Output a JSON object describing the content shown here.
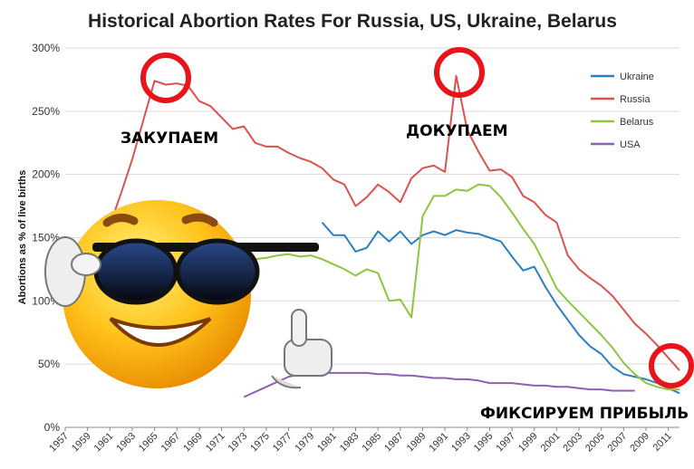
{
  "chart_data": {
    "type": "line",
    "title": "Historical Abortion Rates For Russia, US, Ukraine, Belarus",
    "ylabel": "Abortions as % of live births",
    "xlabel": "",
    "ylim": [
      0,
      300
    ],
    "xlim": [
      1957,
      2012
    ],
    "y_ticks": [
      "0%",
      "50%",
      "100%",
      "150%",
      "200%",
      "250%",
      "300%"
    ],
    "x_ticks": [
      "1957",
      "1959",
      "1961",
      "1963",
      "1965",
      "1967",
      "1969",
      "1971",
      "1973",
      "1975",
      "1977",
      "1979",
      "1981",
      "1983",
      "1985",
      "1987",
      "1989",
      "1991",
      "1993",
      "1995",
      "1997",
      "1999",
      "2001",
      "2003",
      "2005",
      "2007",
      "2009",
      "2011"
    ],
    "grid": "horizontal",
    "legend_position": "top-right",
    "series": [
      {
        "name": "Ukraine",
        "color": "#2e7fc0",
        "x": [
          1980,
          1981,
          1982,
          1983,
          1984,
          1985,
          1986,
          1987,
          1988,
          1989,
          1990,
          1991,
          1992,
          1993,
          1994,
          1995,
          1996,
          1997,
          1998,
          1999,
          2000,
          2001,
          2002,
          2003,
          2004,
          2005,
          2006,
          2007,
          2008,
          2009,
          2010,
          2011,
          2012
        ],
        "values": [
          162,
          152,
          152,
          139,
          142,
          155,
          147,
          155,
          145,
          152,
          155,
          152,
          156,
          154,
          153,
          150,
          147,
          135,
          124,
          127,
          111,
          97,
          85,
          73,
          64,
          58,
          48,
          42,
          40,
          38,
          35,
          31,
          27
        ]
      },
      {
        "name": "Russia",
        "color": "#d9534f",
        "x": [
          1957,
          1958,
          1959,
          1960,
          1961,
          1962,
          1963,
          1964,
          1965,
          1966,
          1967,
          1968,
          1969,
          1970,
          1971,
          1972,
          1973,
          1974,
          1975,
          1976,
          1977,
          1978,
          1979,
          1980,
          1981,
          1982,
          1983,
          1984,
          1985,
          1986,
          1987,
          1988,
          1989,
          1990,
          1991,
          1992,
          1993,
          1994,
          1995,
          1996,
          1997,
          1998,
          1999,
          2000,
          2001,
          2002,
          2003,
          2004,
          2005,
          2006,
          2007,
          2008,
          2009,
          2010,
          2011,
          2012
        ],
        "values": [
          90,
          100,
          118,
          133,
          160,
          185,
          212,
          243,
          274,
          271,
          272,
          270,
          258,
          254,
          245,
          236,
          238,
          225,
          222,
          222,
          217,
          213,
          210,
          205,
          196,
          192,
          175,
          182,
          192,
          186,
          178,
          197,
          205,
          207,
          202,
          278,
          235,
          218,
          203,
          204,
          198,
          183,
          178,
          168,
          162,
          136,
          125,
          118,
          112,
          104,
          93,
          82,
          74,
          65,
          55,
          45
        ]
      },
      {
        "name": "Belarus",
        "color": "#8cc63f",
        "x": [
          1957,
          1958,
          1959,
          1960,
          1961,
          1962,
          1963,
          1964,
          1965,
          1966,
          1967,
          1968,
          1969,
          1970,
          1971,
          1972,
          1973,
          1974,
          1975,
          1976,
          1977,
          1978,
          1979,
          1980,
          1981,
          1982,
          1983,
          1984,
          1985,
          1986,
          1987,
          1988,
          1989,
          1990,
          1991,
          1992,
          1993,
          1994,
          1995,
          1996,
          1997,
          1998,
          1999,
          2000,
          2001,
          2002,
          2003,
          2004,
          2005,
          2006,
          2007,
          2008,
          2009,
          2010,
          2011,
          2012
        ],
        "values": [
          115,
          118,
          120,
          122,
          123,
          125,
          127,
          128,
          129,
          130,
          130,
          131,
          131,
          132,
          132,
          133,
          133,
          133,
          134,
          136,
          137,
          135,
          136,
          133,
          129,
          125,
          120,
          125,
          122,
          100,
          101,
          87,
          167,
          183,
          183,
          188,
          187,
          192,
          191,
          182,
          170,
          157,
          145,
          128,
          110,
          100,
          91,
          82,
          73,
          63,
          51,
          42,
          35,
          32,
          30,
          30
        ]
      },
      {
        "name": "USA",
        "color": "#8e5fb5",
        "x": [
          1973,
          1974,
          1975,
          1976,
          1977,
          1978,
          1979,
          1980,
          1981,
          1982,
          1983,
          1984,
          1985,
          1986,
          1987,
          1988,
          1989,
          1990,
          1991,
          1992,
          1993,
          1994,
          1995,
          1996,
          1997,
          1998,
          1999,
          2000,
          2001,
          2002,
          2003,
          2004,
          2005,
          2006,
          2007,
          2008
        ],
        "values": [
          24,
          28,
          32,
          36,
          40,
          42,
          43,
          43,
          43,
          43,
          43,
          43,
          42,
          42,
          41,
          41,
          40,
          39,
          39,
          38,
          38,
          37,
          35,
          35,
          35,
          34,
          33,
          33,
          32,
          32,
          31,
          30,
          30,
          29,
          29,
          29
        ]
      }
    ]
  },
  "annotations": {
    "buy_label": "ЗАКУПАЕМ",
    "rebuy_label": "ДОКУПАЕМ",
    "profit_label": "ФИКСИРУЕМ ПРИБЫЛЬ",
    "circle_color": "#e8141b"
  }
}
